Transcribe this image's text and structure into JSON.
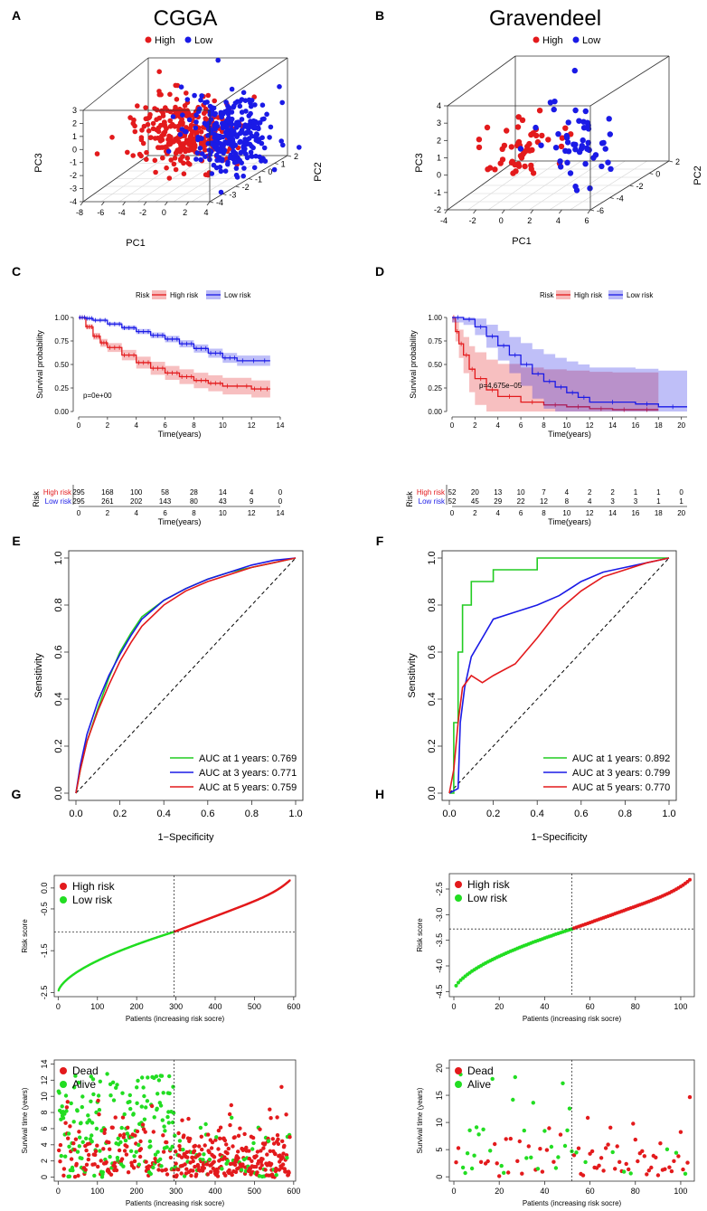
{
  "panel_letters": [
    "A",
    "B",
    "C",
    "D",
    "E",
    "F",
    "G",
    "H"
  ],
  "chart_data": [
    {
      "panel": "A",
      "type": "scatter",
      "subtype": "3d-pca",
      "title": "CGGA",
      "legend": [
        {
          "label": "High",
          "color": "#e31a1c"
        },
        {
          "label": "Low",
          "color": "#1a1ae6"
        }
      ],
      "xlabel": "PC1",
      "ylabel": "PC2",
      "zlabel": "PC3",
      "x_ticks": [
        "-8",
        "-6",
        "-4",
        "-2",
        "0",
        "2",
        "4"
      ],
      "y_ticks": [
        "-4",
        "-3",
        "-2",
        "-1",
        "0",
        "1",
        "2"
      ],
      "z_ticks": [
        "-4",
        "-3",
        "-2",
        "-1",
        "0",
        "1",
        "2",
        "3"
      ],
      "clusters": {
        "high": {
          "n": 295
        },
        "low": {
          "n": 295
        }
      }
    },
    {
      "panel": "B",
      "type": "scatter",
      "subtype": "3d-pca",
      "title": "Gravendeel",
      "legend": [
        {
          "label": "High",
          "color": "#e31a1c"
        },
        {
          "label": "Low",
          "color": "#1a1ae6"
        }
      ],
      "xlabel": "PC1",
      "ylabel": "PC2",
      "zlabel": "PC3",
      "x_ticks": [
        "-4",
        "-2",
        "0",
        "2",
        "4",
        "6"
      ],
      "y_ticks": [
        "-6",
        "-4",
        "-2",
        "0",
        "2"
      ],
      "z_ticks": [
        "-2",
        "-1",
        "0",
        "1",
        "2",
        "3",
        "4"
      ],
      "clusters": {
        "high": {
          "n": 52
        },
        "low": {
          "n": 52
        }
      }
    },
    {
      "panel": "C",
      "type": "line",
      "subtype": "kaplan-meier",
      "legend_title": "Risk",
      "series": [
        {
          "name": "High risk",
          "color": "#e31a1c",
          "x": [
            0,
            0.5,
            1,
            1.5,
            2,
            3,
            4,
            5,
            6,
            7,
            8,
            9,
            10,
            12,
            13.3
          ],
          "y": [
            1.0,
            0.9,
            0.8,
            0.73,
            0.68,
            0.6,
            0.52,
            0.46,
            0.41,
            0.37,
            0.33,
            0.3,
            0.27,
            0.24,
            0.24
          ]
        },
        {
          "name": "Low risk",
          "color": "#1a1ae6",
          "x": [
            0,
            0.5,
            1,
            2,
            3,
            4,
            5,
            6,
            7,
            8,
            9,
            10,
            11,
            13.3
          ],
          "y": [
            1.0,
            0.99,
            0.97,
            0.93,
            0.89,
            0.85,
            0.81,
            0.77,
            0.72,
            0.67,
            0.62,
            0.57,
            0.54,
            0.54
          ]
        }
      ],
      "pvalue": "p=0e+00",
      "xlabel": "Time(years)",
      "ylabel": "Survival probability",
      "xlim": [
        0,
        14
      ],
      "ylim": [
        0,
        1
      ],
      "x_ticks": [
        "0",
        "2",
        "4",
        "6",
        "8",
        "10",
        "12",
        "14"
      ],
      "y_ticks": [
        "0.00",
        "0.25",
        "0.50",
        "0.75",
        "1.00"
      ],
      "risk_table": {
        "title": "Risk",
        "rows": [
          {
            "label": "High risk",
            "color": "#e31a1c",
            "values": [
              "295",
              "168",
              "100",
              "58",
              "28",
              "14",
              "4",
              "0"
            ]
          },
          {
            "label": "Low risk",
            "color": "#1a1ae6",
            "values": [
              "295",
              "261",
              "202",
              "143",
              "80",
              "43",
              "9",
              "0"
            ]
          }
        ],
        "x_ticks": [
          "0",
          "2",
          "4",
          "6",
          "8",
          "10",
          "12",
          "14"
        ],
        "xlabel": "Time(years)"
      }
    },
    {
      "panel": "D",
      "type": "line",
      "subtype": "kaplan-meier",
      "legend_title": "Risk",
      "series": [
        {
          "name": "High risk",
          "color": "#e31a1c",
          "x": [
            0,
            0.3,
            0.6,
            1,
            1.5,
            2,
            3,
            4,
            6,
            8,
            10,
            12,
            14,
            16,
            18
          ],
          "y": [
            1.0,
            0.85,
            0.72,
            0.6,
            0.45,
            0.35,
            0.23,
            0.16,
            0.1,
            0.07,
            0.05,
            0.03,
            0.02,
            0.02,
            0.02
          ]
        },
        {
          "name": "Low risk",
          "color": "#1a1ae6",
          "x": [
            0,
            1,
            2,
            3,
            4,
            5,
            6,
            7,
            8,
            9,
            10,
            11,
            12,
            16,
            18,
            20.5
          ],
          "y": [
            1.0,
            0.98,
            0.9,
            0.8,
            0.7,
            0.6,
            0.5,
            0.4,
            0.32,
            0.26,
            0.2,
            0.15,
            0.1,
            0.08,
            0.05,
            0.05
          ]
        }
      ],
      "pvalue": "p=4.675e−05",
      "xlabel": "Time(years)",
      "ylabel": "Survival probability",
      "xlim": [
        0,
        20.5
      ],
      "ylim": [
        0,
        1
      ],
      "x_ticks": [
        "0",
        "2",
        "4",
        "6",
        "8",
        "10",
        "12",
        "14",
        "16",
        "18",
        "20"
      ],
      "y_ticks": [
        "0.00",
        "0.25",
        "0.50",
        "0.75",
        "1.00"
      ],
      "risk_table": {
        "title": "Risk",
        "rows": [
          {
            "label": "High risk",
            "color": "#e31a1c",
            "values": [
              "52",
              "20",
              "13",
              "10",
              "7",
              "4",
              "2",
              "2",
              "1",
              "1",
              "0"
            ]
          },
          {
            "label": "Low risk",
            "color": "#1a1ae6",
            "values": [
              "52",
              "45",
              "29",
              "22",
              "12",
              "8",
              "4",
              "3",
              "3",
              "1",
              "1"
            ]
          }
        ],
        "x_ticks": [
          "0",
          "2",
          "4",
          "6",
          "8",
          "10",
          "12",
          "14",
          "16",
          "18",
          "20"
        ],
        "xlabel": "Time(years)"
      }
    },
    {
      "panel": "E",
      "type": "line",
      "subtype": "roc",
      "xlabel": "1−Specificity",
      "ylabel": "Sensitivity",
      "xlim": [
        0,
        1
      ],
      "ylim": [
        0,
        1
      ],
      "x_ticks": [
        "0.0",
        "0.2",
        "0.4",
        "0.6",
        "0.8",
        "1.0"
      ],
      "y_ticks": [
        "0.0",
        "0.2",
        "0.4",
        "0.6",
        "0.8",
        "1.0"
      ],
      "series": [
        {
          "name": "AUC at 1 years: 0.769",
          "color": "#22cc22",
          "x": [
            0,
            0.02,
            0.05,
            0.1,
            0.15,
            0.2,
            0.25,
            0.3,
            0.4,
            0.5,
            0.6,
            0.7,
            0.8,
            0.9,
            1
          ],
          "y": [
            0,
            0.1,
            0.22,
            0.36,
            0.49,
            0.6,
            0.68,
            0.75,
            0.82,
            0.87,
            0.91,
            0.94,
            0.96,
            0.98,
            1
          ]
        },
        {
          "name": "AUC at 3 years: 0.771",
          "color": "#1a1ae6",
          "x": [
            0,
            0.02,
            0.05,
            0.1,
            0.15,
            0.2,
            0.25,
            0.3,
            0.4,
            0.5,
            0.6,
            0.7,
            0.8,
            0.9,
            1
          ],
          "y": [
            0,
            0.12,
            0.25,
            0.39,
            0.5,
            0.59,
            0.67,
            0.74,
            0.82,
            0.87,
            0.91,
            0.94,
            0.97,
            0.99,
            1
          ]
        },
        {
          "name": "AUC at 5 years: 0.759",
          "color": "#e31a1c",
          "x": [
            0,
            0.02,
            0.05,
            0.1,
            0.15,
            0.2,
            0.25,
            0.3,
            0.4,
            0.5,
            0.6,
            0.7,
            0.8,
            0.9,
            1
          ],
          "y": [
            0,
            0.1,
            0.22,
            0.35,
            0.46,
            0.56,
            0.64,
            0.71,
            0.8,
            0.86,
            0.9,
            0.93,
            0.96,
            0.98,
            1
          ]
        }
      ]
    },
    {
      "panel": "F",
      "type": "line",
      "subtype": "roc",
      "xlabel": "1−Specificity",
      "ylabel": "Sensitivity",
      "xlim": [
        0,
        1
      ],
      "ylim": [
        0,
        1
      ],
      "x_ticks": [
        "0.0",
        "0.2",
        "0.4",
        "0.6",
        "0.8",
        "1.0"
      ],
      "y_ticks": [
        "0.0",
        "0.2",
        "0.4",
        "0.6",
        "0.8",
        "1.0"
      ],
      "series": [
        {
          "name": "AUC at 1 years: 0.892",
          "color": "#22cc22",
          "x": [
            0,
            0.02,
            0.02,
            0.04,
            0.04,
            0.06,
            0.06,
            0.1,
            0.1,
            0.2,
            0.2,
            0.4,
            0.4,
            1
          ],
          "y": [
            0,
            0,
            0.3,
            0.3,
            0.6,
            0.6,
            0.8,
            0.8,
            0.9,
            0.9,
            0.95,
            0.95,
            1,
            1
          ]
        },
        {
          "name": "AUC at 3 years: 0.799",
          "color": "#1a1ae6",
          "x": [
            0,
            0.04,
            0.05,
            0.07,
            0.1,
            0.15,
            0.2,
            0.3,
            0.4,
            0.5,
            0.6,
            0.7,
            0.8,
            0.9,
            1
          ],
          "y": [
            0,
            0.02,
            0.3,
            0.45,
            0.58,
            0.66,
            0.74,
            0.77,
            0.8,
            0.84,
            0.9,
            0.94,
            0.96,
            0.98,
            1
          ]
        },
        {
          "name": "AUC at 5 years: 0.770",
          "color": "#e31a1c",
          "x": [
            0,
            0.02,
            0.04,
            0.06,
            0.1,
            0.15,
            0.2,
            0.3,
            0.4,
            0.5,
            0.6,
            0.7,
            0.8,
            0.9,
            1
          ],
          "y": [
            0,
            0.1,
            0.3,
            0.45,
            0.5,
            0.47,
            0.5,
            0.55,
            0.66,
            0.78,
            0.86,
            0.92,
            0.95,
            0.98,
            1
          ]
        }
      ]
    },
    {
      "panel": "G-top",
      "type": "scatter",
      "subtype": "risk-score-curve",
      "ylabel": "Risk score",
      "xlabel": "Patients (increasing risk socre)",
      "xlim": [
        -10,
        605
      ],
      "ylim": [
        -2.6,
        0.3
      ],
      "x_ticks": [
        "0",
        "100",
        "200",
        "300",
        "400",
        "500",
        "600"
      ],
      "y_ticks": [
        "-2.5",
        "-1.5",
        "-0.5",
        "0.0"
      ],
      "cutoff_index": 295,
      "cutoff_value": -1.05,
      "n": 590,
      "legend": [
        {
          "label": "High risk",
          "color": "#e31a1c"
        },
        {
          "label": "Low risk",
          "color": "#22dd22"
        }
      ]
    },
    {
      "panel": "G-bottom",
      "type": "scatter",
      "subtype": "survival-status",
      "ylabel": "Survival time (years)",
      "xlabel": "Patients (increasing risk socre)",
      "xlim": [
        -10,
        605
      ],
      "ylim": [
        -0.5,
        14.5
      ],
      "x_ticks": [
        "0",
        "100",
        "200",
        "300",
        "400",
        "500",
        "600"
      ],
      "y_ticks": [
        "0",
        "2",
        "4",
        "6",
        "8",
        "10",
        "12",
        "14"
      ],
      "cutoff_index": 295,
      "n": 590,
      "legend": [
        {
          "label": "Dead",
          "color": "#e31a1c"
        },
        {
          "label": "Alive",
          "color": "#22dd22"
        }
      ]
    },
    {
      "panel": "H-top",
      "type": "scatter",
      "subtype": "risk-score-curve",
      "ylabel": "Risk score",
      "xlabel": "Patients (increasing risk socre)",
      "xlim": [
        -2,
        106
      ],
      "ylim": [
        -4.6,
        -2.2
      ],
      "x_ticks": [
        "0",
        "20",
        "40",
        "60",
        "80",
        "100"
      ],
      "y_ticks": [
        "-4.5",
        "-4.0",
        "-3.5",
        "-3.0",
        "-2.5"
      ],
      "cutoff_index": 52,
      "cutoff_value": -3.28,
      "n": 104,
      "legend": [
        {
          "label": "High risk",
          "color": "#e31a1c"
        },
        {
          "label": "Low risk",
          "color": "#22dd22"
        }
      ]
    },
    {
      "panel": "H-bottom",
      "type": "scatter",
      "subtype": "survival-status",
      "ylabel": "Survival time (years)",
      "xlabel": "Patients (increasing risk socre)",
      "xlim": [
        -2,
        106
      ],
      "ylim": [
        -0.8,
        21.5
      ],
      "x_ticks": [
        "0",
        "20",
        "40",
        "60",
        "80",
        "100"
      ],
      "y_ticks": [
        "0",
        "5",
        "10",
        "15",
        "20"
      ],
      "cutoff_index": 52,
      "n": 104,
      "legend": [
        {
          "label": "Dead",
          "color": "#e31a1c"
        },
        {
          "label": "Alive",
          "color": "#22dd22"
        }
      ]
    }
  ]
}
